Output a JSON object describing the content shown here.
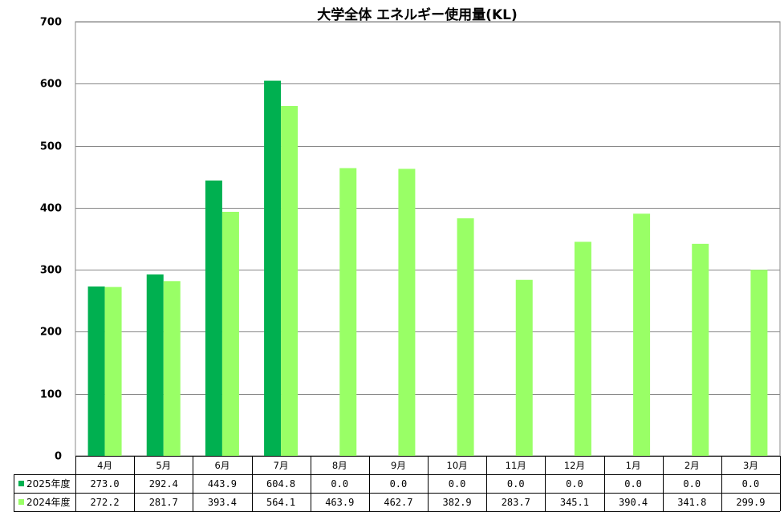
{
  "chart_data": {
    "type": "bar",
    "title": "大学全体 エネルギー使用量(KL)",
    "categories": [
      "4月",
      "5月",
      "6月",
      "7月",
      "8月",
      "9月",
      "10月",
      "11月",
      "12月",
      "1月",
      "2月",
      "3月"
    ],
    "series": [
      {
        "name": "2025年度",
        "color": "#00b050",
        "values": [
          273.0,
          292.4,
          443.9,
          604.8,
          0.0,
          0.0,
          0.0,
          0.0,
          0.0,
          0.0,
          0.0,
          0.0
        ],
        "labels": [
          "273.0",
          "292.4",
          "443.9",
          "604.8",
          "0.0",
          "0.0",
          "0.0",
          "0.0",
          "0.0",
          "0.0",
          "0.0",
          "0.0"
        ]
      },
      {
        "name": "2024年度",
        "color": "#99ff66",
        "values": [
          272.2,
          281.7,
          393.4,
          564.1,
          463.9,
          462.7,
          382.9,
          283.7,
          345.1,
          390.4,
          341.8,
          299.9
        ],
        "labels": [
          "272.2",
          "281.7",
          "393.4",
          "564.1",
          "463.9",
          "462.7",
          "382.9",
          "283.7",
          "345.1",
          "390.4",
          "341.8",
          "299.9"
        ]
      }
    ],
    "ylim": [
      0,
      700
    ],
    "yticks": [
      "0",
      "100",
      "200",
      "300",
      "400",
      "500",
      "600",
      "700"
    ],
    "grid": true,
    "legend_placement": "data-table"
  }
}
